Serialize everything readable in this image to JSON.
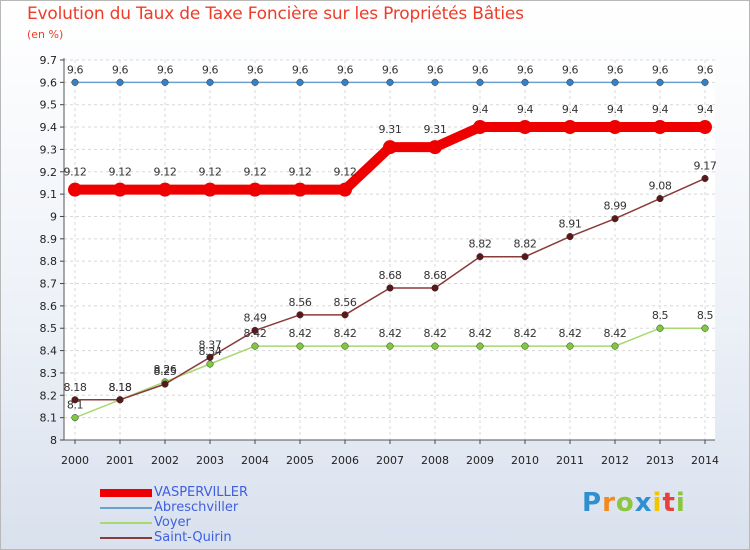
{
  "title": "Evolution du Taux de Taxe Foncière sur les Propriétés Bâties",
  "unit_label": "(en %)",
  "brand": {
    "letters": [
      "P",
      "r",
      "o",
      "x",
      "i",
      "t",
      "i"
    ],
    "colors": [
      "#2f8fd0",
      "#f08a1c",
      "#8cc63f",
      "#2f8fd0",
      "#f2c500",
      "#e8403a",
      "#8cc63f"
    ]
  },
  "chart_data": {
    "type": "line",
    "title": "Evolution du Taux de Taxe Foncière sur les Propriétés Bâties",
    "ylabel": "(en %)",
    "xlabel": "",
    "ylim": [
      8,
      9.7
    ],
    "yticks": [
      "8",
      "8.1",
      "8.2",
      "8.3",
      "8.4",
      "8.5",
      "8.6",
      "8.7",
      "8.8",
      "8.9",
      "9",
      "9.1",
      "9.2",
      "9.3",
      "9.4",
      "9.5",
      "9.6",
      "9.7"
    ],
    "x": [
      "2000",
      "2001",
      "2002",
      "2003",
      "2004",
      "2005",
      "2006",
      "2007",
      "2008",
      "2009",
      "2010",
      "2011",
      "2012",
      "2013",
      "2014"
    ],
    "series": [
      {
        "name": "VASPERVILLER",
        "color": "#ee0000",
        "thick": true,
        "values": [
          9.12,
          9.12,
          9.12,
          9.12,
          9.12,
          9.12,
          9.12,
          9.31,
          9.31,
          9.4,
          9.4,
          9.4,
          9.4,
          9.4,
          9.4
        ],
        "labels": [
          "9.12",
          "9.12",
          "9.12",
          "9.12",
          "9.12",
          "9.12",
          "9.12",
          "9.31",
          "9.31",
          "9.4",
          "9.4",
          "9.4",
          "9.4",
          "9.4",
          "9.4"
        ]
      },
      {
        "name": "Abreschviller",
        "color": "#6ca0d0",
        "marker": "#3a7fc0",
        "values": [
          9.6,
          9.6,
          9.6,
          9.6,
          9.6,
          9.6,
          9.6,
          9.6,
          9.6,
          9.6,
          9.6,
          9.6,
          9.6,
          9.6,
          9.6
        ],
        "labels": [
          "9.6",
          "9.6",
          "9.6",
          "9.6",
          "9.6",
          "9.6",
          "9.6",
          "9.6",
          "9.6",
          "9.6",
          "9.6",
          "9.6",
          "9.6",
          "9.6",
          "9.6"
        ]
      },
      {
        "name": "Voyer",
        "color": "#a8d870",
        "marker": "#80c840",
        "values": [
          8.1,
          8.18,
          8.26,
          8.34,
          8.42,
          8.42,
          8.42,
          8.42,
          8.42,
          8.42,
          8.42,
          8.42,
          8.42,
          8.5,
          8.5
        ],
        "labels": [
          "8.1",
          "8.18",
          "8.26",
          "8.34",
          "8.42",
          "8.42",
          "8.42",
          "8.42",
          "8.42",
          "8.42",
          "8.42",
          "8.42",
          "8.42",
          "8.5",
          "8.5"
        ]
      },
      {
        "name": "Saint-Quirin",
        "color": "#8a3a3a",
        "marker": "#5a1818",
        "values": [
          8.18,
          8.18,
          8.25,
          8.37,
          8.49,
          8.56,
          8.56,
          8.68,
          8.68,
          8.82,
          8.82,
          8.91,
          8.99,
          9.08,
          9.17
        ],
        "labels": [
          "8.18",
          "8.18",
          "8.25",
          "8.37",
          "8.49",
          "8.56",
          "8.56",
          "8.68",
          "8.68",
          "8.82",
          "8.82",
          "8.91",
          "8.99",
          "9.08",
          "9.17"
        ]
      }
    ],
    "legend_position": "bottom-left",
    "grid": true
  }
}
